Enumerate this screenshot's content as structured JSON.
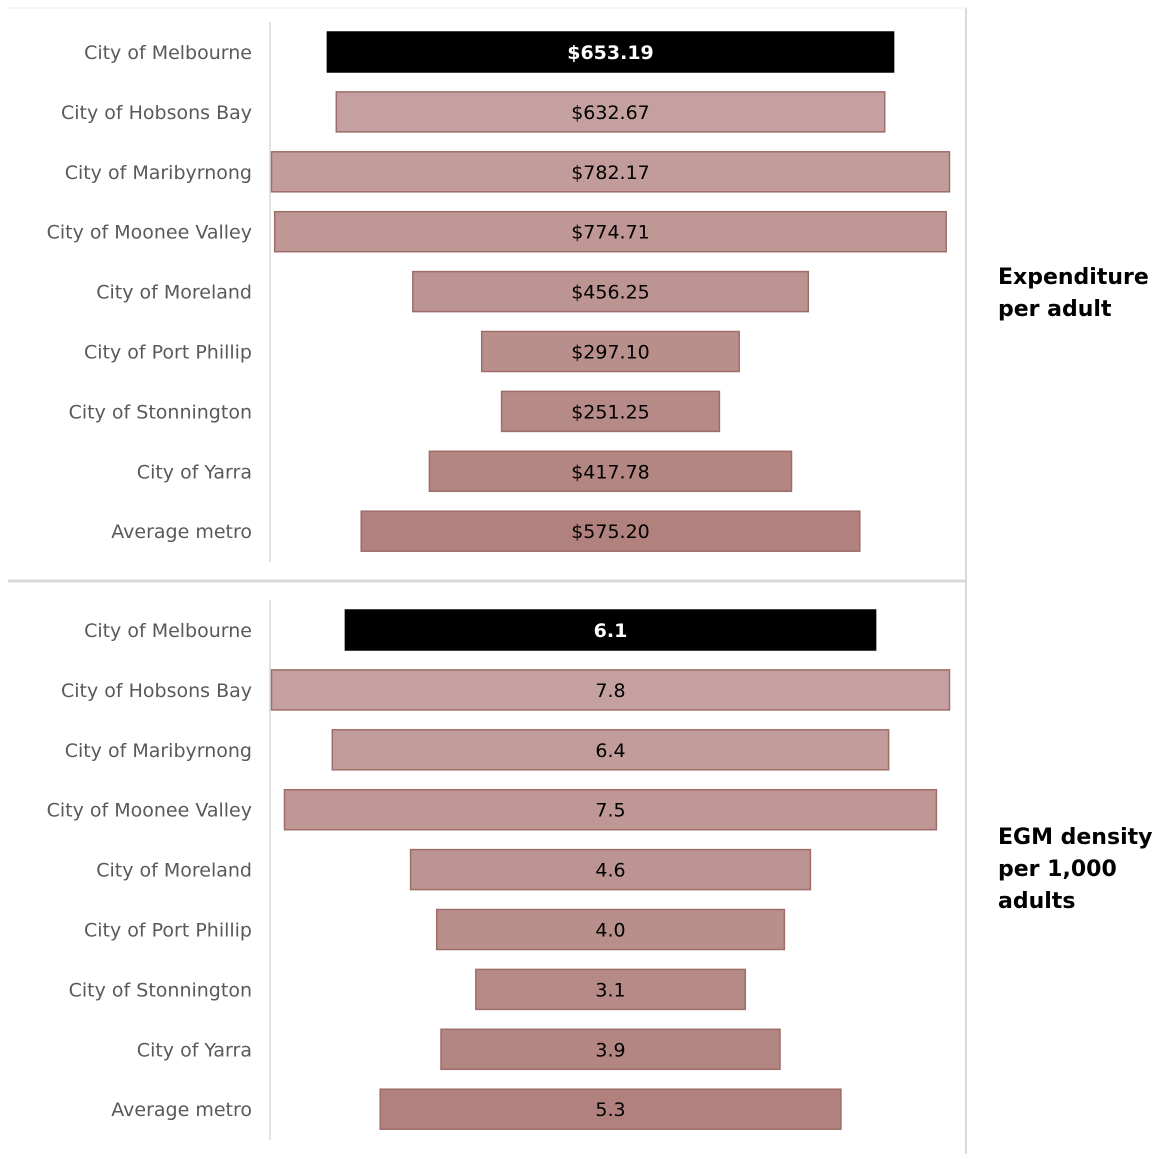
{
  "chart_data": [
    {
      "type": "bar",
      "orientation": "horizontal",
      "layout": "funnel (bars centered)",
      "title": "Expenditure per adult",
      "title_lines": [
        "Expenditure",
        "per adult"
      ],
      "categories": [
        "City of Melbourne",
        "City of Hobsons Bay",
        "City of Maribyrnong",
        "City of Moonee Valley",
        "City of Moreland",
        "City of Port Phillip",
        "City of Stonnington",
        "City of Yarra",
        "Average metro"
      ],
      "values": [
        653.19,
        632.67,
        782.17,
        774.71,
        456.25,
        297.1,
        251.25,
        417.78,
        575.2
      ],
      "labels": [
        "$653.19",
        "$632.67",
        "$782.17",
        "$774.71",
        "$456.25",
        "$297.10",
        "$251.25",
        "$417.78",
        "$575.20"
      ],
      "highlight_index": 0,
      "colors": {
        "highlight": "#000000",
        "bars": [
          "#000000",
          "#c4a1a0",
          "#c29c9b",
          "#bf9896",
          "#bc9491",
          "#b98f8c",
          "#b68a87",
          "#b38682",
          "#b0817d"
        ],
        "bar_border": "#9e6d6a"
      }
    },
    {
      "type": "bar",
      "orientation": "horizontal",
      "layout": "funnel (bars centered)",
      "title": "EGM density per 1,000 adults",
      "title_lines": [
        "EGM density",
        "per 1,000",
        "adults"
      ],
      "categories": [
        "City of Melbourne",
        "City of Hobsons Bay",
        "City of Maribyrnong",
        "City of Moonee Valley",
        "City of Moreland",
        "City of Port Phillip",
        "City of Stonnington",
        "City of Yarra",
        "Average metro"
      ],
      "values": [
        6.1,
        7.8,
        6.4,
        7.5,
        4.6,
        4.0,
        3.1,
        3.9,
        5.3
      ],
      "labels": [
        "6.1",
        "7.8",
        "6.4",
        "7.5",
        "4.6",
        "4.0",
        "3.1",
        "3.9",
        "5.3"
      ],
      "highlight_index": 0,
      "colors": {
        "highlight": "#000000",
        "bars": [
          "#000000",
          "#c4a1a0",
          "#c29c9b",
          "#bf9896",
          "#bc9491",
          "#b98f8c",
          "#b68a87",
          "#b38682",
          "#b0817d"
        ],
        "bar_border": "#9e6d6a"
      }
    }
  ]
}
